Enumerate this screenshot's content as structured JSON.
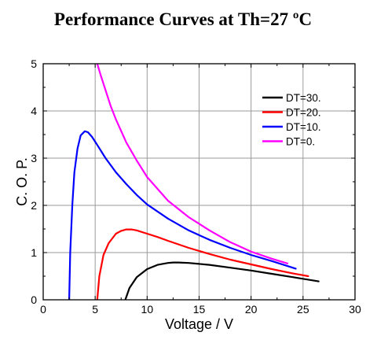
{
  "chart_data": {
    "type": "line",
    "title": "Performance Curves at Th=27 ºC",
    "xlabel": "Voltage / V",
    "ylabel": "C. O. P.",
    "xlim": [
      0,
      30
    ],
    "ylim": [
      0,
      5
    ],
    "xticks": [
      0,
      5,
      10,
      15,
      20,
      25,
      30
    ],
    "yticks": [
      0,
      1,
      2,
      3,
      4,
      5
    ],
    "grid": true,
    "legend_position": "top-right",
    "series": [
      {
        "name": "DT=30.",
        "color": "#000000",
        "x": [
          7.9,
          8.3,
          9.0,
          10.0,
          11.0,
          12.0,
          12.5,
          13.0,
          14.0,
          15.0,
          16.0,
          18.0,
          20.0,
          22.0,
          24.0,
          26.5
        ],
        "y": [
          0.0,
          0.25,
          0.48,
          0.65,
          0.74,
          0.78,
          0.79,
          0.79,
          0.78,
          0.76,
          0.74,
          0.68,
          0.62,
          0.55,
          0.48,
          0.39
        ]
      },
      {
        "name": "DT=20.",
        "color": "#ff0000",
        "x": [
          5.2,
          5.4,
          5.8,
          6.3,
          7.0,
          7.5,
          8.0,
          8.5,
          9.0,
          10.0,
          11.0,
          12.0,
          14.0,
          16.0,
          18.0,
          20.0,
          22.0,
          24.0,
          25.5
        ],
        "y": [
          0.0,
          0.5,
          0.95,
          1.2,
          1.4,
          1.46,
          1.49,
          1.49,
          1.47,
          1.4,
          1.33,
          1.25,
          1.1,
          0.97,
          0.85,
          0.75,
          0.65,
          0.56,
          0.5
        ]
      },
      {
        "name": "DT=10.",
        "color": "#0000ff",
        "x": [
          2.5,
          2.6,
          2.8,
          3.0,
          3.3,
          3.6,
          4.0,
          4.3,
          4.7,
          5.2,
          6.0,
          7.0,
          8.0,
          9.0,
          10.0,
          12.0,
          14.0,
          16.0,
          18.0,
          20.0,
          22.0,
          24.3
        ],
        "y": [
          0.0,
          1.0,
          2.0,
          2.7,
          3.2,
          3.48,
          3.57,
          3.55,
          3.45,
          3.28,
          3.0,
          2.7,
          2.45,
          2.22,
          2.02,
          1.72,
          1.47,
          1.27,
          1.1,
          0.95,
          0.82,
          0.66
        ]
      },
      {
        "name": "DT=0.",
        "color": "#ff00ff",
        "x": [
          5.2,
          5.5,
          6.0,
          6.5,
          7.0,
          8.0,
          9.0,
          10.0,
          12.0,
          14.0,
          16.0,
          18.0,
          20.0,
          22.0,
          23.5
        ],
        "y": [
          5.0,
          4.78,
          4.44,
          4.1,
          3.82,
          3.33,
          2.95,
          2.6,
          2.1,
          1.75,
          1.47,
          1.22,
          1.02,
          0.87,
          0.77
        ]
      }
    ]
  }
}
